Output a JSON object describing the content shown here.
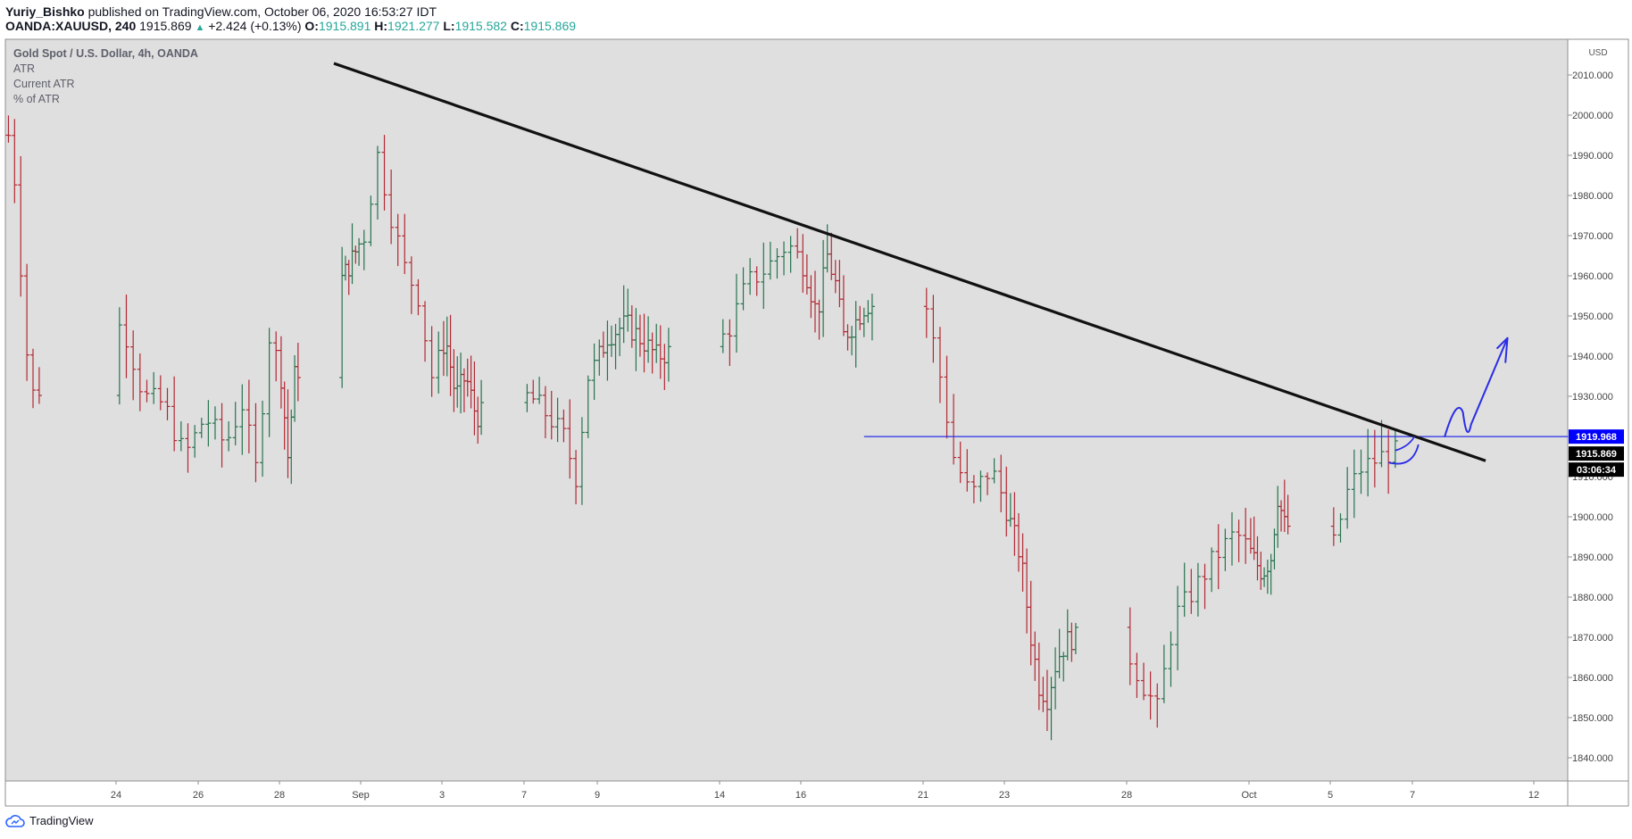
{
  "header": {
    "author": "Yuriy_Bishko",
    "published_text": "published on TradingView.com, October 06, 2020 16:53:27 IDT",
    "symbol": "OANDA:XAUUSD, 240",
    "last": "1915.869",
    "change": "+2.424 (+0.13%)",
    "o_label": "O:",
    "o_value": "1915.891",
    "h_label": "H:",
    "h_value": "1921.277",
    "l_label": "L:",
    "l_value": "1915.582",
    "c_label": "C:",
    "c_value": "1915.869"
  },
  "legend": {
    "title": "Gold Spot / U.S. Dollar, 4h, OANDA",
    "lines": [
      "ATR",
      "Current ATR",
      "% of ATR"
    ]
  },
  "footer": {
    "brand": "TradingView"
  },
  "colors": {
    "up": "#26734d",
    "down": "#b22833",
    "background": "#dfdfdf",
    "trendline": "#111111",
    "level_line": "#2a2de6",
    "drawing": "#2a2de6",
    "tag_blue": "#0000ff",
    "tag_black": "#000000"
  },
  "icons": {
    "brand_logo": "tradingview-cloud-icon"
  },
  "chart_data": {
    "type": "ohlc",
    "instrument": "Gold Spot / U.S. Dollar",
    "timeframe": "4h",
    "ylabel": "USD",
    "ylim": [
      1835,
      2016
    ],
    "y_ticks": [
      "1840.000",
      "1850.000",
      "1860.000",
      "1870.000",
      "1880.000",
      "1890.000",
      "1900.000",
      "1910.000",
      "1920.000",
      "1930.000",
      "1940.000",
      "1950.000",
      "1960.000",
      "1970.000",
      "1980.000",
      "1990.000",
      "2000.000",
      "2010.000"
    ],
    "x_ticks": [
      "24",
      "26",
      "28",
      "Sep",
      "3",
      "7",
      "9",
      "14",
      "16",
      "21",
      "23",
      "28",
      "Oct",
      "5",
      "7",
      "12"
    ],
    "grid": false,
    "price_tags": [
      {
        "label": "1919.968",
        "kind": "horizontal-level"
      },
      {
        "label": "1915.869",
        "kind": "last-price"
      },
      {
        "label": "03:06:34",
        "kind": "bar-countdown"
      }
    ],
    "waypoints": [
      [
        "2020-08-21",
        1995
      ],
      [
        "2020-08-21",
        1930
      ],
      [
        "2020-08-24",
        1948
      ],
      [
        "2020-08-24",
        1930
      ],
      [
        "2020-08-25",
        1928
      ],
      [
        "2020-08-25",
        1915
      ],
      [
        "2020-08-26",
        1925
      ],
      [
        "2020-08-26",
        1918
      ],
      [
        "2020-08-27",
        1928
      ],
      [
        "2020-08-27",
        1912
      ],
      [
        "2020-08-27",
        1945
      ],
      [
        "2020-08-28",
        1935
      ],
      [
        "2020-08-28",
        1915
      ],
      [
        "2020-08-28",
        1935
      ],
      [
        "2020-08-31",
        1960
      ],
      [
        "2020-08-31",
        1965
      ],
      [
        "2020-09-01",
        1970
      ],
      [
        "2020-09-01",
        1990
      ],
      [
        "2020-09-01",
        1975
      ],
      [
        "2020-09-02",
        1962
      ],
      [
        "2020-09-02",
        1955
      ],
      [
        "2020-09-02",
        1935
      ],
      [
        "2020-09-03",
        1945
      ],
      [
        "2020-09-03",
        1930
      ],
      [
        "2020-09-04",
        1935
      ],
      [
        "2020-09-04",
        1925
      ],
      [
        "2020-09-07",
        1930
      ],
      [
        "2020-09-07",
        1925
      ],
      [
        "2020-09-08",
        1920
      ],
      [
        "2020-09-08",
        1910
      ],
      [
        "2020-09-08",
        1935
      ],
      [
        "2020-09-09",
        1945
      ],
      [
        "2020-09-10",
        1948
      ],
      [
        "2020-09-10",
        1945
      ],
      [
        "2020-09-11",
        1940
      ],
      [
        "2020-09-14",
        1945
      ],
      [
        "2020-09-14",
        1958
      ],
      [
        "2020-09-15",
        1962
      ],
      [
        "2020-09-15",
        1968
      ],
      [
        "2020-09-16",
        1962
      ],
      [
        "2020-09-16",
        1950
      ],
      [
        "2020-09-17",
        1965
      ],
      [
        "2020-09-17",
        1958
      ],
      [
        "2020-09-17",
        1945
      ],
      [
        "2020-09-18",
        1948
      ],
      [
        "2020-09-18",
        1953
      ],
      [
        "2020-09-21",
        1952
      ],
      [
        "2020-09-21",
        1935
      ],
      [
        "2020-09-21",
        1915
      ],
      [
        "2020-09-22",
        1905
      ],
      [
        "2020-09-22",
        1912
      ],
      [
        "2020-09-23",
        1900
      ],
      [
        "2020-09-23",
        1890
      ],
      [
        "2020-09-24",
        1870
      ],
      [
        "2020-09-24",
        1858
      ],
      [
        "2020-09-24",
        1855
      ],
      [
        "2020-09-25",
        1865
      ],
      [
        "2020-09-25",
        1870
      ],
      [
        "2020-09-28",
        1865
      ],
      [
        "2020-09-28",
        1858
      ],
      [
        "2020-09-28",
        1852
      ],
      [
        "2020-09-29",
        1875
      ],
      [
        "2020-09-29",
        1882
      ],
      [
        "2020-09-30",
        1890
      ],
      [
        "2020-09-30",
        1896
      ],
      [
        "2020-10-01",
        1890
      ],
      [
        "2020-10-01",
        1886
      ],
      [
        "2020-10-02",
        1890
      ],
      [
        "2020-10-02",
        1905
      ],
      [
        "2020-10-02",
        1898
      ],
      [
        "2020-10-05",
        1893
      ],
      [
        "2020-10-05",
        1906
      ],
      [
        "2020-10-05",
        1912
      ],
      [
        "2020-10-06",
        1916
      ]
    ]
  }
}
